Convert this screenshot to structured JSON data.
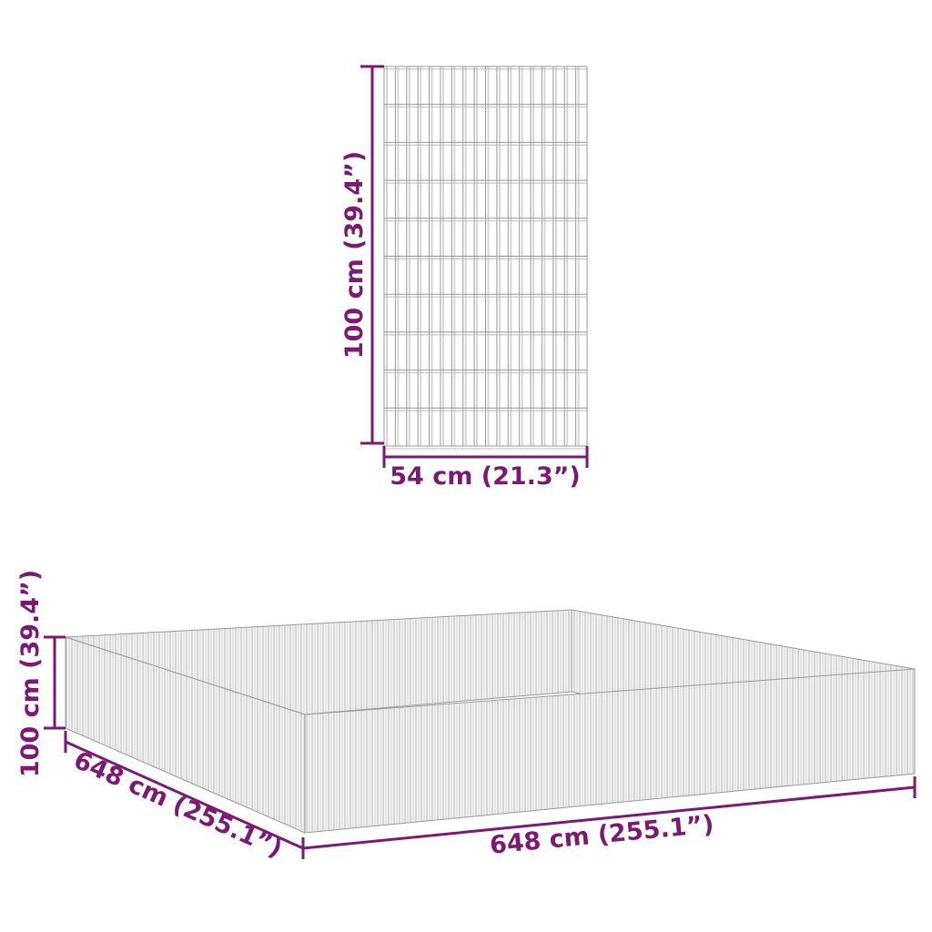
{
  "colors": {
    "dimension": "#7b1a72",
    "wire": "#9a9a9a",
    "wire_light": "#d2d2d2"
  },
  "panel": {
    "height_label": "100 cm (39.4”)",
    "width_label": "54 cm (21.3”)"
  },
  "pen": {
    "height_label": "100 cm (39.4”)",
    "depth_label": "648 cm (255.1”)",
    "width_label": "648 cm (255.1”)"
  }
}
